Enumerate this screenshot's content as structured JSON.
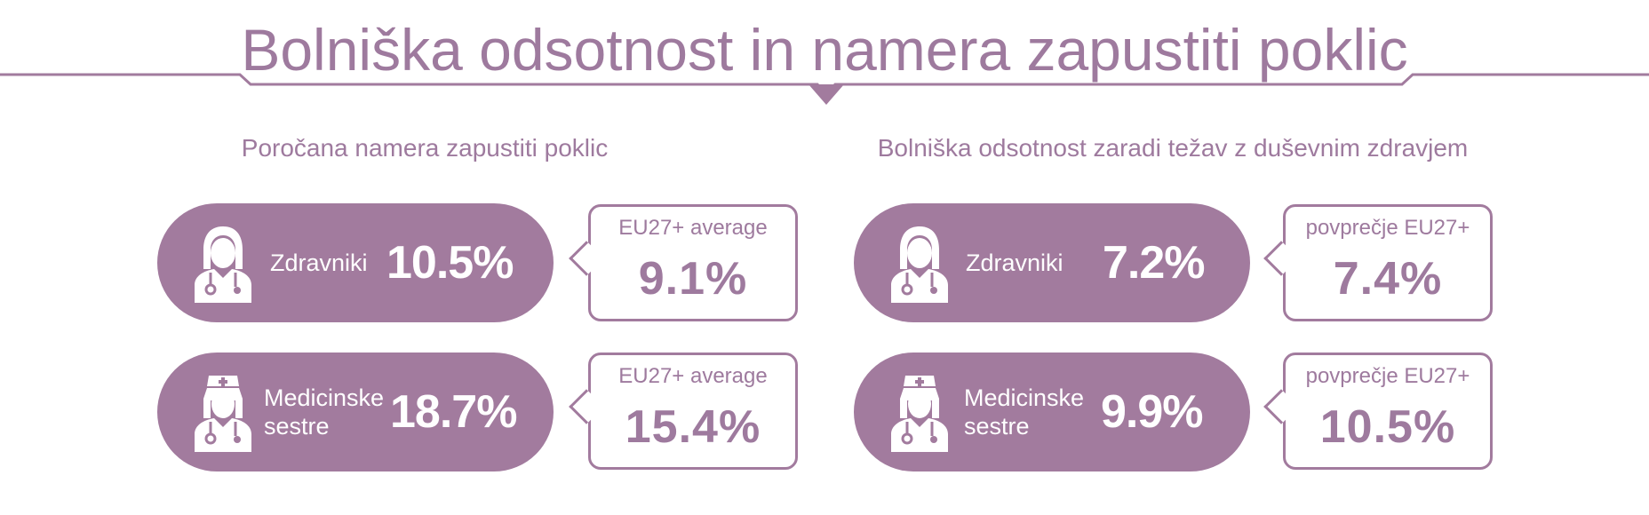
{
  "title": "Bolniška odsotnost in namera zapustiti poklic",
  "colors": {
    "accent": "#a27b9e",
    "text": "#9e7a9e",
    "background": "#ffffff"
  },
  "left": {
    "heading": "Poročana namera zapustiti poklic",
    "rows": [
      {
        "icon": "female-doctor-icon",
        "label_line1": "Zdravniki",
        "label_line2": "",
        "value": "10.5%",
        "avg_label": "EU27+ average",
        "avg_value": "9.1%"
      },
      {
        "icon": "nurse-icon",
        "label_line1": "Medicinske",
        "label_line2": "sestre",
        "value": "18.7%",
        "avg_label": "EU27+ average",
        "avg_value": "15.4%"
      }
    ]
  },
  "right": {
    "heading": "Bolniška odsotnost zaradi težav z duševnim zdravjem",
    "rows": [
      {
        "icon": "female-doctor-icon",
        "label_line1": "Zdravniki",
        "label_line2": "",
        "value": "7.2%",
        "avg_label": "povprečje EU27+",
        "avg_value": "7.4%"
      },
      {
        "icon": "nurse-icon",
        "label_line1": "Medicinske",
        "label_line2": "sestre",
        "value": "9.9%",
        "avg_label": "povprečje EU27+",
        "avg_value": "10.5%"
      }
    ]
  }
}
